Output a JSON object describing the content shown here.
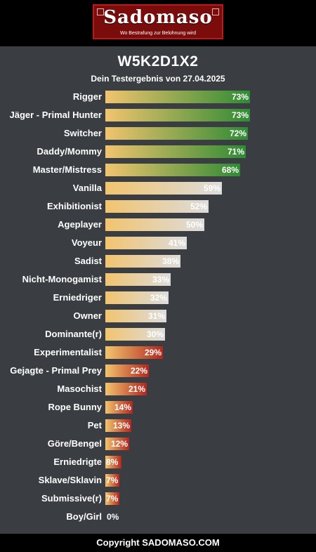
{
  "header": {
    "logo_text": "Sadomaso",
    "tagline": "Wo Bestrafung zur Belohnung wird"
  },
  "result": {
    "title": "W5K2D1X2",
    "subtitle": "Dein Testergebnis von 27.04.2025"
  },
  "footer": {
    "copyright": "Copyright SADOMASO.COM"
  },
  "colors": {
    "background": "#3a3d42",
    "gradient_start": "#f2c46e",
    "high": "#2e8b34",
    "medium": "#dcdcdc",
    "low": "#b3261e"
  },
  "chart_data": {
    "type": "bar",
    "orientation": "horizontal",
    "title": "",
    "xlabel": "",
    "ylabel": "",
    "xlim": [
      0,
      100
    ],
    "unit": "%",
    "categories": [
      "Rigger",
      "Jäger - Primal Hunter",
      "Switcher",
      "Daddy/Mommy",
      "Master/Mistress",
      "Vanilla",
      "Exhibitionist",
      "Ageplayer",
      "Voyeur",
      "Sadist",
      "Nicht-Monogamist",
      "Erniedriger",
      "Owner",
      "Dominante(r)",
      "Experimentalist",
      "Gejagte - Primal Prey",
      "Masochist",
      "Rope Bunny",
      "Pet",
      "Göre/Bengel",
      "Erniedrigte",
      "Sklave/Sklavin",
      "Submissive(r)",
      "Boy/Girl"
    ],
    "values": [
      73,
      73,
      72,
      71,
      68,
      59,
      52,
      50,
      41,
      38,
      33,
      32,
      31,
      30,
      29,
      22,
      21,
      14,
      13,
      12,
      8,
      7,
      7,
      0
    ],
    "value_labels": [
      "73%",
      "73%",
      "72%",
      "71%",
      "68%",
      "59%",
      "52%",
      "50%",
      "41%",
      "38%",
      "33%",
      "32%",
      "31%",
      "30%",
      "29%",
      "22%",
      "21%",
      "14%",
      "13%",
      "12%",
      "8%",
      "7%",
      "7%",
      "0%"
    ]
  }
}
